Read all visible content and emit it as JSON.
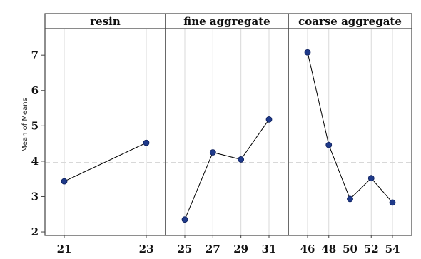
{
  "chart_data": {
    "type": "line",
    "ylabel": "Mean of Means",
    "ylim": [
      1.9,
      7.75
    ],
    "yticks": [
      2,
      3,
      4,
      5,
      6,
      7
    ],
    "reference_line": 3.95,
    "panels": [
      {
        "title": "resin",
        "x": [
          21,
          23
        ],
        "y": [
          3.43,
          4.52
        ]
      },
      {
        "title": "fine aggregate",
        "x": [
          25,
          27,
          29,
          31
        ],
        "y": [
          2.35,
          4.25,
          4.05,
          5.18
        ]
      },
      {
        "title": "coarse aggregate",
        "x": [
          46,
          48,
          50,
          52,
          54
        ],
        "y": [
          7.08,
          4.46,
          2.93,
          3.52,
          2.83
        ]
      }
    ]
  },
  "colors": {
    "marker": "#1f3a8a",
    "line": "#000000",
    "reference": "#666666",
    "frame": "#444444"
  }
}
